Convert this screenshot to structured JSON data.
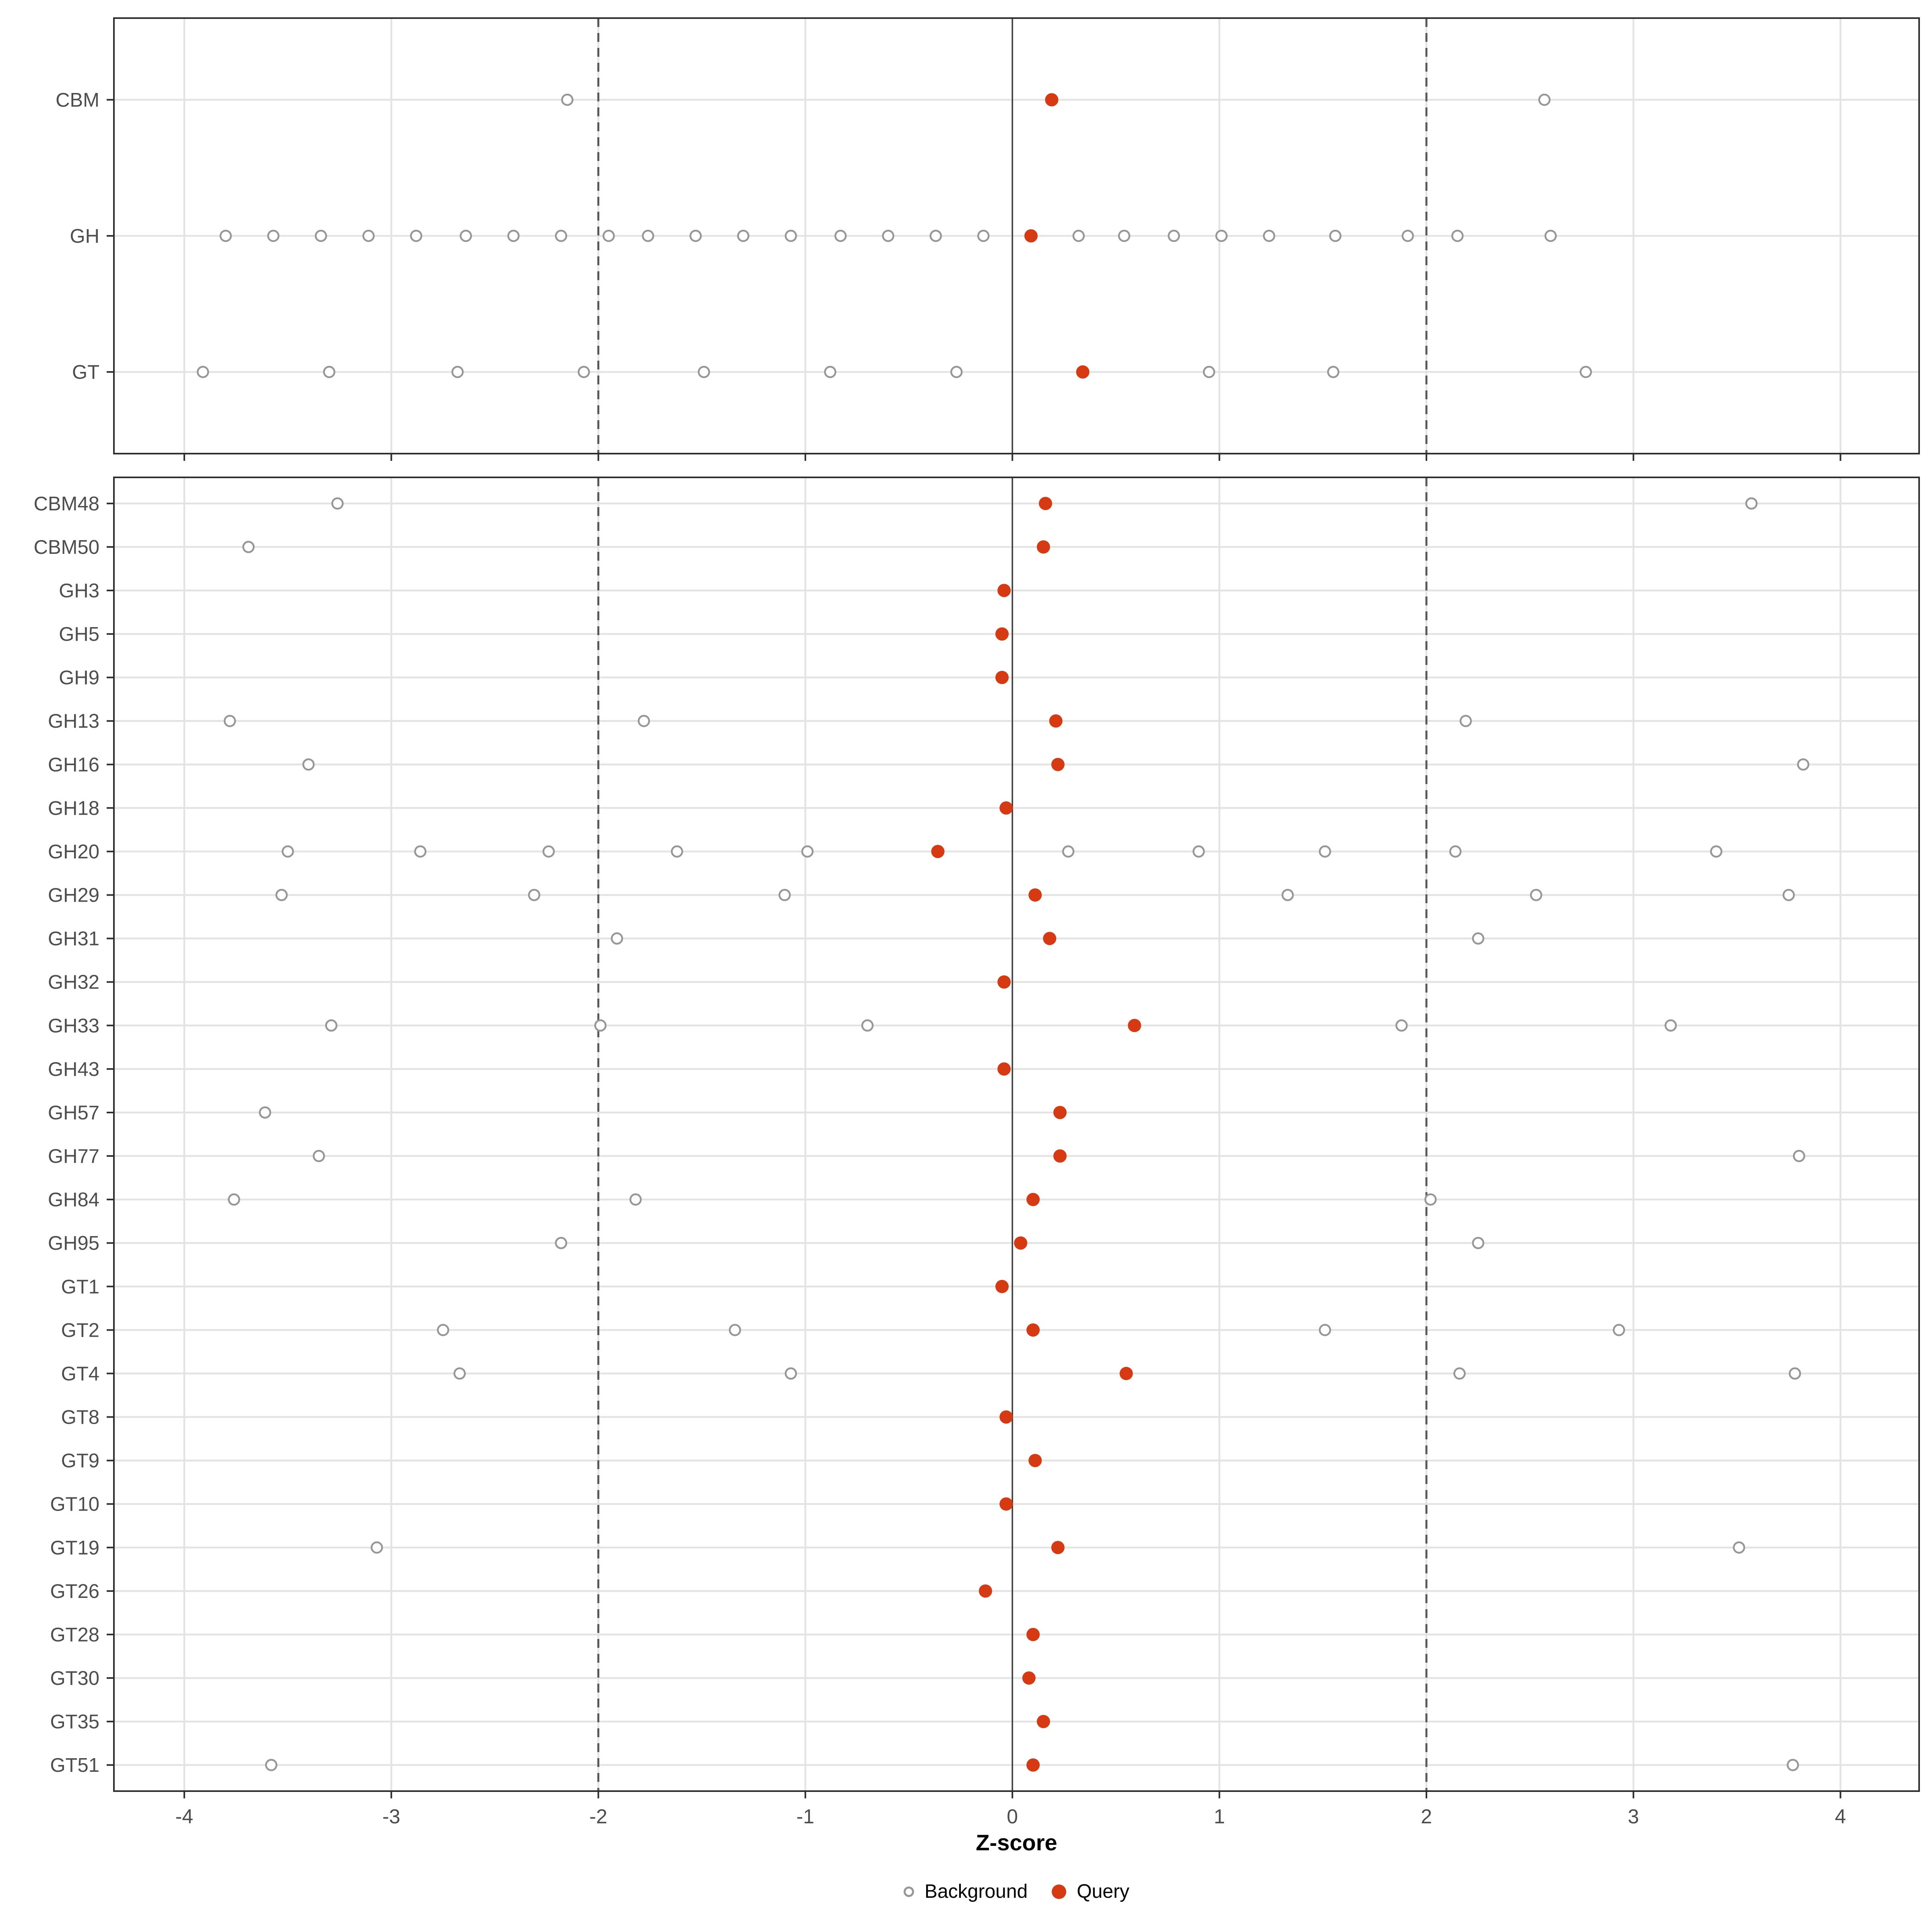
{
  "chart_data": {
    "type": "scatter",
    "title": "",
    "xlabel": "Z-score",
    "x_ticks": [
      -4,
      -3,
      -2,
      -1,
      0,
      1,
      2,
      3,
      4
    ],
    "xlim": [
      -4.34,
      4.38
    ],
    "grid": "on",
    "legend_position": "bottom",
    "reference_lines": {
      "solid": [
        0
      ],
      "dashed": [
        -2,
        2
      ]
    },
    "legend": [
      {
        "label": "Background",
        "marker": "open-circle"
      },
      {
        "label": "Query",
        "marker": "filled-circle"
      }
    ],
    "colors": {
      "query_fill": "#D63A12",
      "background_stroke": "#979797",
      "grid": "#E3E3E3",
      "axis_text": "#4D4D4D",
      "ref_dashed": "#595959",
      "ref_solid": "#3F3F3F",
      "panel_border": "#2E2E2E"
    },
    "panels": [
      {
        "name": "family-summary",
        "rows": [
          {
            "label": "CBM",
            "background": [
              -2.15,
              2.57
            ],
            "query": 0.19
          },
          {
            "label": "GH",
            "background": [
              -3.8,
              -3.57,
              -3.34,
              -3.11,
              -2.88,
              -2.64,
              -2.41,
              -2.18,
              -1.95,
              -1.76,
              -1.53,
              -1.3,
              -1.07,
              -0.83,
              -0.6,
              -0.37,
              -0.14,
              0.32,
              0.54,
              0.78,
              1.01,
              1.24,
              1.56,
              1.91,
              2.15,
              2.6
            ],
            "query": 0.09
          },
          {
            "label": "GT",
            "background": [
              -3.91,
              -3.3,
              -2.68,
              -2.07,
              -1.49,
              -0.88,
              -0.27,
              0.95,
              1.55,
              2.77
            ],
            "query": 0.34
          }
        ]
      },
      {
        "name": "subfamily-detail",
        "rows": [
          {
            "label": "CBM48",
            "background": [
              -3.26,
              3.57
            ],
            "query": 0.16
          },
          {
            "label": "CBM50",
            "background": [
              -3.69
            ],
            "query": 0.15
          },
          {
            "label": "GH3",
            "background": [],
            "query": -0.04
          },
          {
            "label": "GH5",
            "background": [],
            "query": -0.05
          },
          {
            "label": "GH9",
            "background": [],
            "query": -0.05
          },
          {
            "label": "GH13",
            "background": [
              -3.78,
              -1.78,
              2.19
            ],
            "query": 0.21
          },
          {
            "label": "GH16",
            "background": [
              -3.4,
              3.82
            ],
            "query": 0.22
          },
          {
            "label": "GH18",
            "background": [],
            "query": -0.03
          },
          {
            "label": "GH20",
            "background": [
              -3.5,
              -2.86,
              -2.24,
              -1.62,
              -0.99,
              0.27,
              0.9,
              1.51,
              2.14,
              3.4
            ],
            "query": -0.36
          },
          {
            "label": "GH29",
            "background": [
              -3.53,
              -2.31,
              -1.1,
              1.33,
              2.53,
              3.75
            ],
            "query": 0.11
          },
          {
            "label": "GH31",
            "background": [
              -1.91,
              2.25
            ],
            "query": 0.18
          },
          {
            "label": "GH32",
            "background": [],
            "query": -0.04
          },
          {
            "label": "GH33",
            "background": [
              -3.29,
              -1.99,
              -0.7,
              1.88,
              3.18
            ],
            "query": 0.59
          },
          {
            "label": "GH43",
            "background": [],
            "query": -0.04
          },
          {
            "label": "GH57",
            "background": [
              -3.61
            ],
            "query": 0.23
          },
          {
            "label": "GH77",
            "background": [
              -3.35,
              3.8
            ],
            "query": 0.23
          },
          {
            "label": "GH84",
            "background": [
              -3.76,
              -1.82,
              2.02
            ],
            "query": 0.1
          },
          {
            "label": "GH95",
            "background": [
              -2.18,
              2.25
            ],
            "query": 0.04
          },
          {
            "label": "GT1",
            "background": [],
            "query": -0.05
          },
          {
            "label": "GT2",
            "background": [
              -2.75,
              -1.34,
              1.51,
              2.93
            ],
            "query": 0.1
          },
          {
            "label": "GT4",
            "background": [
              -2.67,
              -1.07,
              2.16,
              3.78
            ],
            "query": 0.55
          },
          {
            "label": "GT8",
            "background": [],
            "query": -0.03
          },
          {
            "label": "GT9",
            "background": [],
            "query": 0.11
          },
          {
            "label": "GT10",
            "background": [],
            "query": -0.03
          },
          {
            "label": "GT19",
            "background": [
              -3.07,
              3.51
            ],
            "query": 0.22
          },
          {
            "label": "GT26",
            "background": [],
            "query": -0.13
          },
          {
            "label": "GT28",
            "background": [],
            "query": 0.1
          },
          {
            "label": "GT30",
            "background": [],
            "query": 0.08
          },
          {
            "label": "GT35",
            "background": [],
            "query": 0.15
          },
          {
            "label": "GT51",
            "background": [
              -3.58,
              3.77
            ],
            "query": 0.1
          }
        ]
      }
    ]
  }
}
